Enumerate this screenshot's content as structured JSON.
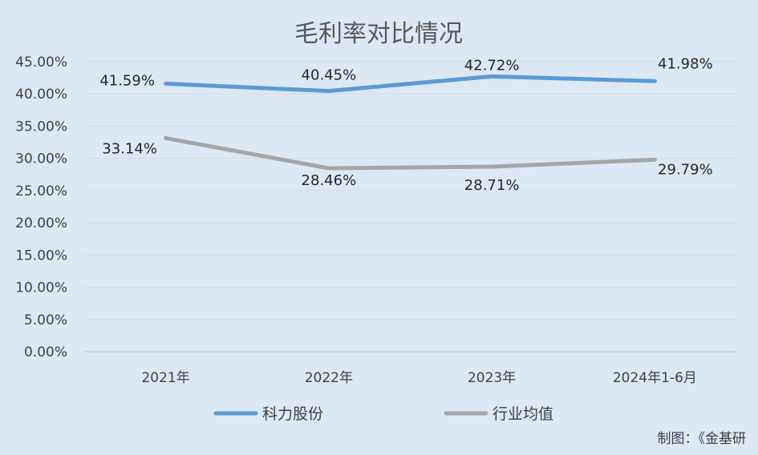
{
  "chart_data": {
    "type": "line",
    "title": "毛利率对比情况",
    "categories": [
      "2021年",
      "2022年",
      "2023年",
      "2024年1-6月"
    ],
    "y_ticks": [
      "0.00%",
      "5.00%",
      "10.00%",
      "15.00%",
      "20.00%",
      "25.00%",
      "30.00%",
      "35.00%",
      "40.00%",
      "45.00%"
    ],
    "ylim": [
      0,
      45
    ],
    "grid": true,
    "legend_position": "bottom",
    "series": [
      {
        "name": "科力股份",
        "values": [
          41.59,
          40.45,
          42.72,
          41.98
        ],
        "labels": [
          "41.59%",
          "40.45%",
          "42.72%",
          "41.98%"
        ],
        "color": "#5b9bd5"
      },
      {
        "name": "行业均值",
        "values": [
          33.14,
          28.46,
          28.71,
          29.79
        ],
        "labels": [
          "33.14%",
          "28.46%",
          "28.71%",
          "29.79%"
        ],
        "color": "#a5a5a5"
      }
    ]
  },
  "source_note": "制图：《金基研"
}
